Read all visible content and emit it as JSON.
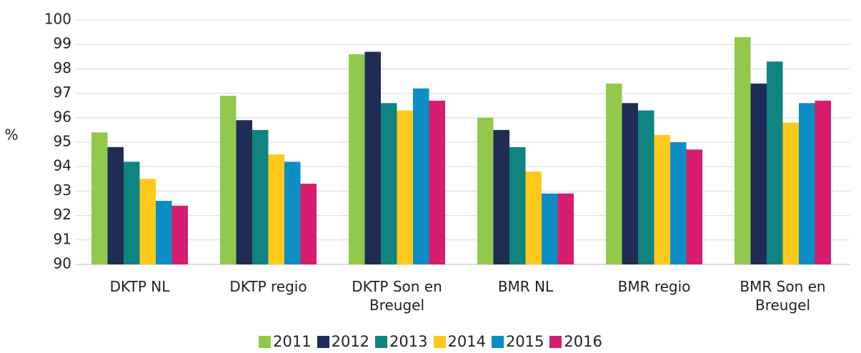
{
  "chart_data": {
    "type": "bar",
    "y_label": "%",
    "categories": [
      "DKTP NL",
      "DKTP regio",
      "DKTP Son en Breugel",
      "BMR NL",
      "BMR regio",
      "BMR Son en Breugel"
    ],
    "series": [
      {
        "name": "2011",
        "color": "#92c84c",
        "values": [
          95.4,
          96.9,
          98.6,
          96.0,
          97.4,
          99.3
        ]
      },
      {
        "name": "2012",
        "color": "#1f2d56",
        "values": [
          94.8,
          95.9,
          98.7,
          95.5,
          96.6,
          97.4
        ]
      },
      {
        "name": "2013",
        "color": "#0f8480",
        "values": [
          94.2,
          95.5,
          96.6,
          94.8,
          96.3,
          98.3
        ]
      },
      {
        "name": "2014",
        "color": "#ffc91b",
        "values": [
          93.5,
          94.5,
          96.3,
          93.8,
          95.3,
          95.8
        ]
      },
      {
        "name": "2015",
        "color": "#0a8ec3",
        "values": [
          92.6,
          94.2,
          97.2,
          92.9,
          95.0,
          96.6
        ]
      },
      {
        "name": "2016",
        "color": "#d71d6e",
        "values": [
          92.4,
          93.3,
          96.7,
          92.9,
          94.7,
          96.7
        ]
      }
    ],
    "ylim": [
      90,
      100
    ],
    "yticks": [
      90,
      91,
      92,
      93,
      94,
      95,
      96,
      97,
      98,
      99,
      100
    ],
    "grid": true,
    "legend": "bottom"
  }
}
